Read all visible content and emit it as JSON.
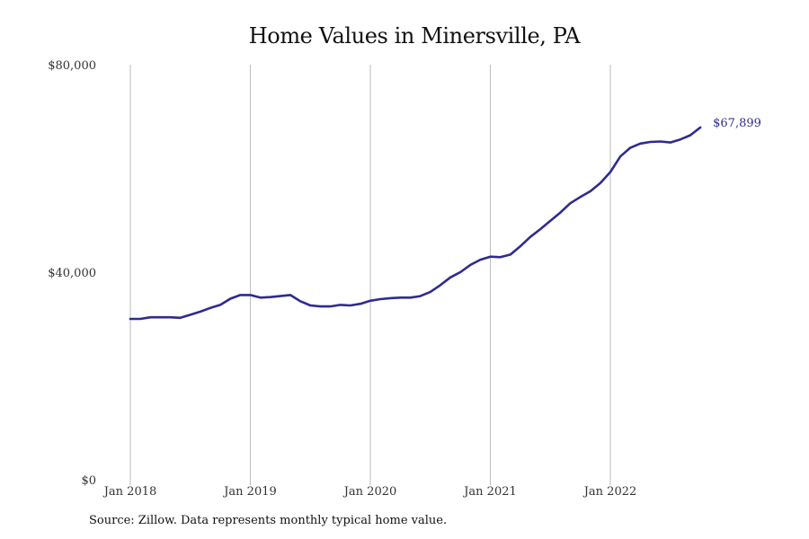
{
  "chart_data": {
    "type": "line",
    "title": "Home Values in Minersville, PA",
    "xlabel": "",
    "ylabel": "",
    "ylim": [
      0,
      80000
    ],
    "y_ticks": [
      {
        "value": 0,
        "label": "$0"
      },
      {
        "value": 40000,
        "label": "$40,000"
      },
      {
        "value": 80000,
        "label": "$80,000"
      }
    ],
    "x_ticks": [
      {
        "date": "2018-01",
        "label": "Jan 2018"
      },
      {
        "date": "2019-01",
        "label": "Jan 2019"
      },
      {
        "date": "2020-01",
        "label": "Jan 2020"
      },
      {
        "date": "2021-01",
        "label": "Jan 2021"
      },
      {
        "date": "2022-01",
        "label": "Jan 2022"
      }
    ],
    "grid": "vertical lines at x ticks",
    "line_color": "#2e2b8f",
    "end_label": "$67,899",
    "x": [
      "2018-01",
      "2018-02",
      "2018-03",
      "2018-04",
      "2018-05",
      "2018-06",
      "2018-07",
      "2018-08",
      "2018-09",
      "2018-10",
      "2018-11",
      "2018-12",
      "2019-01",
      "2019-02",
      "2019-03",
      "2019-04",
      "2019-05",
      "2019-06",
      "2019-07",
      "2019-08",
      "2019-09",
      "2019-10",
      "2019-11",
      "2019-12",
      "2020-01",
      "2020-02",
      "2020-03",
      "2020-04",
      "2020-05",
      "2020-06",
      "2020-07",
      "2020-08",
      "2020-09",
      "2020-10",
      "2020-11",
      "2020-12",
      "2021-01",
      "2021-02",
      "2021-03",
      "2021-04",
      "2021-05",
      "2021-06",
      "2021-07",
      "2021-08",
      "2021-09",
      "2021-10",
      "2021-11",
      "2021-12",
      "2022-01",
      "2022-02",
      "2022-03",
      "2022-04",
      "2022-05",
      "2022-06",
      "2022-07",
      "2022-08",
      "2022-09",
      "2022-10"
    ],
    "series": [
      {
        "values": [
          31000,
          31000,
          31300,
          31300,
          31300,
          31200,
          31800,
          32400,
          33100,
          33700,
          34900,
          35600,
          35600,
          35100,
          35200,
          35400,
          35600,
          34400,
          33600,
          33400,
          33400,
          33700,
          33600,
          33900,
          34500,
          34800,
          35000,
          35100,
          35100,
          35400,
          36200,
          37500,
          39000,
          40000,
          41400,
          42400,
          43000,
          42900,
          43400,
          45000,
          46800,
          48300,
          49900,
          51500,
          53300,
          54500,
          55600,
          57200,
          59300,
          62300,
          64000,
          64800,
          65100,
          65200,
          65000,
          65600,
          66400,
          67899
        ]
      }
    ],
    "source_note": "Source: Zillow. Data represents monthly typical home value."
  }
}
